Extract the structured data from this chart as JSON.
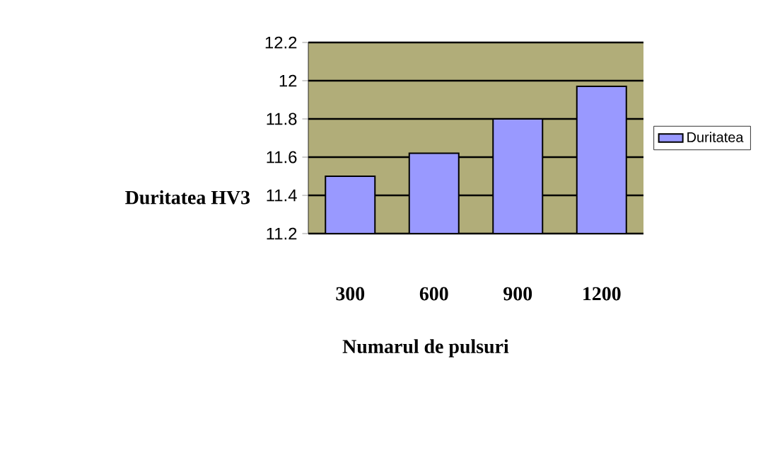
{
  "chart_data": {
    "type": "bar",
    "categories": [
      "300",
      "600",
      "900",
      "1200"
    ],
    "series": [
      {
        "name": "Duritatea",
        "color": "#9999ff",
        "values": [
          11.5,
          11.62,
          11.8,
          11.97
        ]
      }
    ],
    "xlabel": "Numarul de pulsuri",
    "ylabel": "Duritatea HV3",
    "ylim": [
      11.2,
      12.2
    ],
    "yticks": [
      11.2,
      11.4,
      11.6,
      11.8,
      12,
      12.2
    ],
    "grid": "y",
    "legend": "right"
  }
}
